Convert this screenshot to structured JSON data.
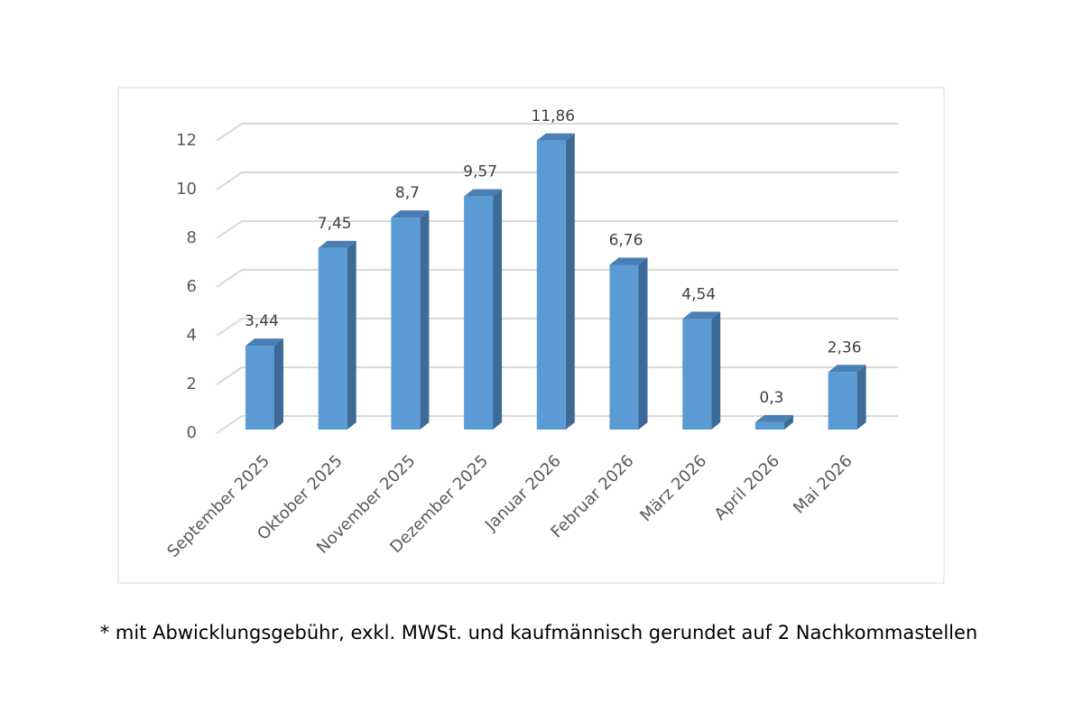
{
  "chart_data": {
    "type": "bar3d",
    "categories": [
      "September 2025",
      "Oktober 2025",
      "November 2025",
      "Dezember 2025",
      "Januar 2026",
      "Februar 2026",
      "März 2026",
      "April 2026",
      "Mai 2026"
    ],
    "values": [
      3.44,
      7.45,
      8.7,
      9.57,
      11.86,
      6.76,
      4.54,
      0.3,
      2.36
    ],
    "value_labels": [
      "3,44",
      "7,45",
      "8,7",
      "9,57",
      "11,86",
      "6,76",
      "4,54",
      "0,3",
      "2,36"
    ],
    "color": "#5b9bd5",
    "ylim": [
      0,
      12
    ],
    "yticks": [
      0,
      2,
      4,
      6,
      8,
      10,
      12
    ],
    "grid": true,
    "footnote": "* mit Abwicklungsgebühr, exkl. MWSt. und kaufmännisch gerundet auf 2 Nachkommastellen"
  }
}
